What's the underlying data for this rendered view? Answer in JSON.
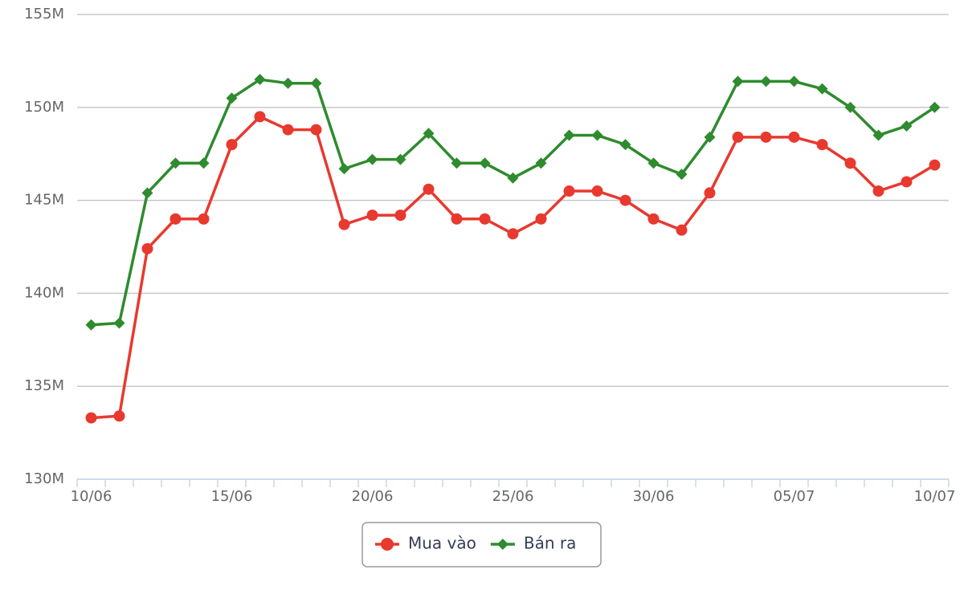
{
  "chart_data": {
    "type": "line",
    "categories": [
      "10/06",
      null,
      null,
      null,
      null,
      "15/06",
      null,
      null,
      null,
      null,
      "20/06",
      null,
      null,
      null,
      null,
      "25/06",
      null,
      null,
      null,
      null,
      "30/06",
      null,
      null,
      null,
      null,
      "05/07",
      null,
      null,
      null,
      null,
      "10/07"
    ],
    "series": [
      {
        "name": "Mua vào",
        "color": "#e8392f",
        "marker": "circle",
        "values": [
          133.3,
          133.4,
          142.4,
          144.0,
          144.0,
          148.0,
          149.5,
          148.8,
          148.8,
          143.7,
          144.2,
          144.2,
          145.6,
          144.0,
          144.0,
          143.2,
          144.0,
          145.5,
          145.5,
          145.0,
          144.0,
          143.4,
          145.4,
          148.4,
          148.4,
          148.4,
          148.0,
          147.0,
          145.5,
          146.0,
          146.9
        ]
      },
      {
        "name": "Bán ra",
        "color": "#2e8b2e",
        "marker": "diamond",
        "values": [
          138.3,
          138.4,
          145.4,
          147.0,
          147.0,
          150.5,
          151.5,
          151.3,
          151.3,
          146.7,
          147.2,
          147.2,
          148.6,
          147.0,
          147.0,
          146.2,
          147.0,
          148.5,
          148.5,
          148.0,
          147.0,
          146.4,
          148.4,
          151.4,
          151.4,
          151.4,
          151.0,
          150.0,
          148.5,
          149.0,
          150.0
        ]
      }
    ],
    "ylim": [
      130,
      155
    ],
    "yticks": [
      {
        "value": 130,
        "label": "130M"
      },
      {
        "value": 135,
        "label": "135M"
      },
      {
        "value": 140,
        "label": "140M"
      },
      {
        "value": 145,
        "label": "145M"
      },
      {
        "value": 150,
        "label": "150M"
      },
      {
        "value": 155,
        "label": "155M"
      }
    ],
    "grid": true
  }
}
